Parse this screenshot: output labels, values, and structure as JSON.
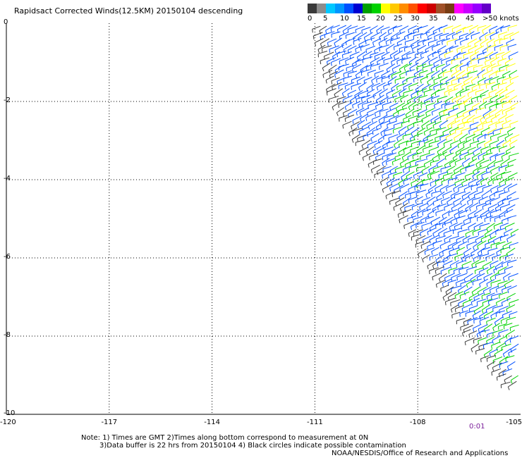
{
  "header": {
    "title": "Rapidsact Corrected Winds(12.5KM) 20150104 descending"
  },
  "legend": {
    "colors": [
      "#3a3a3a",
      "#8c8c8c",
      "#00c8ff",
      "#0096ff",
      "#0050ff",
      "#0000d2",
      "#00a000",
      "#00d200",
      "#ffff00",
      "#ffc800",
      "#ff8c00",
      "#ff5000",
      "#ff0000",
      "#cd0000",
      "#a05028",
      "#783c14",
      "#ff00ff",
      "#c800ff",
      "#9600ff",
      "#6400c8"
    ],
    "labels": [
      "0",
      "5",
      "10",
      "15",
      "20",
      "25",
      "30",
      "35",
      "40",
      "45",
      ">50 knots"
    ]
  },
  "chart_data": {
    "type": "wind-barb-map",
    "title": "Rapidsact Corrected Winds(12.5KM) 20150104 descending",
    "x_ticks": [
      "-120",
      "-117",
      "-114",
      "-111",
      "-108",
      "-105"
    ],
    "y_ticks": [
      "0",
      "-2",
      "-4",
      "-6",
      "-8",
      "-10"
    ],
    "xlim": [
      -120,
      -105
    ],
    "ylim": [
      -10,
      0
    ],
    "grid": true,
    "swath_edge": [
      [
        -110.9,
        0
      ],
      [
        -110.3,
        -2
      ],
      [
        -108.9,
        -4
      ],
      [
        -107.6,
        -6
      ],
      [
        -106.4,
        -8
      ],
      [
        -105.2,
        -9.3
      ]
    ],
    "speed_zones": [
      {
        "speed_knots": 20,
        "color": "#ffff00",
        "region": "upper right, longitude -107 to -105, latitude 0 to -3"
      },
      {
        "speed_knots": 17,
        "color": "#00d200",
        "region": "longitude -108.5 to -105, latitude -1 to -4"
      },
      {
        "speed_knots": 12,
        "color": "#0050ff",
        "region": "western swath and below latitude -4"
      },
      {
        "speed_knots": 2,
        "color": "#3a3a3a",
        "region": "western edge of swath"
      }
    ]
  },
  "footer": {
    "time_label": "0:01",
    "note_line1": "Note: 1) Times are GMT 2)Times along bottom correspond to measurement at 0N",
    "note_line2": "3)Data buffer is 22 hrs from 20150104 4) Black circles indicate possible contamination",
    "credit": "NOAA/NESDIS/Office of Research and Applications"
  }
}
